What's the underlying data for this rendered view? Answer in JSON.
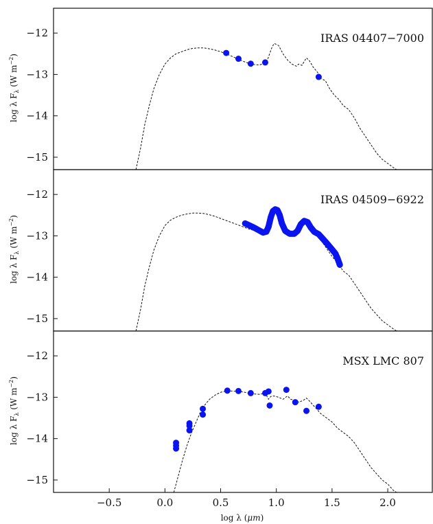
{
  "chart_data": [
    {
      "type": "scatter",
      "label": "IRAS 04407−7000",
      "ylabel_main": "log λ F",
      "ylabel_sub": "λ",
      "ylabel_unit": "(W m",
      "ylabel_exp": "−2",
      "ylabel_close": ")",
      "xlim": [
        -1.0,
        2.4
      ],
      "ylim": [
        -15.3,
        -11.4
      ],
      "yticks": [
        -12,
        -13,
        -14,
        -15
      ],
      "ytick_labels": [
        "−12",
        "−13",
        "−14",
        "−15"
      ],
      "model": [
        [
          -0.26,
          -15.3
        ],
        [
          -0.22,
          -14.8
        ],
        [
          -0.18,
          -14.2
        ],
        [
          -0.14,
          -13.75
        ],
        [
          -0.1,
          -13.35
        ],
        [
          -0.05,
          -13.0
        ],
        [
          0.0,
          -12.75
        ],
        [
          0.05,
          -12.6
        ],
        [
          0.1,
          -12.5
        ],
        [
          0.15,
          -12.45
        ],
        [
          0.2,
          -12.4
        ],
        [
          0.25,
          -12.37
        ],
        [
          0.3,
          -12.36
        ],
        [
          0.35,
          -12.36
        ],
        [
          0.4,
          -12.38
        ],
        [
          0.45,
          -12.41
        ],
        [
          0.5,
          -12.45
        ],
        [
          0.55,
          -12.5
        ],
        [
          0.6,
          -12.56
        ],
        [
          0.65,
          -12.62
        ],
        [
          0.7,
          -12.68
        ],
        [
          0.75,
          -12.73
        ],
        [
          0.8,
          -12.76
        ],
        [
          0.85,
          -12.77
        ],
        [
          0.88,
          -12.74
        ],
        [
          0.92,
          -12.65
        ],
        [
          0.96,
          -12.35
        ],
        [
          0.98,
          -12.25
        ],
        [
          1.02,
          -12.3
        ],
        [
          1.06,
          -12.5
        ],
        [
          1.1,
          -12.65
        ],
        [
          1.14,
          -12.75
        ],
        [
          1.18,
          -12.8
        ],
        [
          1.2,
          -12.75
        ],
        [
          1.23,
          -12.78
        ],
        [
          1.27,
          -12.6
        ],
        [
          1.3,
          -12.68
        ],
        [
          1.33,
          -12.82
        ],
        [
          1.37,
          -12.95
        ],
        [
          1.4,
          -13.1
        ],
        [
          1.44,
          -13.15
        ],
        [
          1.48,
          -13.35
        ],
        [
          1.52,
          -13.5
        ],
        [
          1.56,
          -13.6
        ],
        [
          1.6,
          -13.75
        ],
        [
          1.65,
          -13.85
        ],
        [
          1.7,
          -14.05
        ],
        [
          1.75,
          -14.3
        ],
        [
          1.8,
          -14.5
        ],
        [
          1.85,
          -14.7
        ],
        [
          1.9,
          -14.9
        ],
        [
          1.95,
          -15.05
        ],
        [
          2.0,
          -15.15
        ],
        [
          2.05,
          -15.25
        ],
        [
          2.08,
          -15.3
        ]
      ],
      "points": [
        [
          0.55,
          -12.48
        ],
        [
          0.66,
          -12.62
        ],
        [
          0.77,
          -12.74
        ],
        [
          0.9,
          -12.71
        ],
        [
          1.38,
          -13.06
        ]
      ]
    },
    {
      "type": "scatter",
      "label": "IRAS 04509−6922",
      "ylabel_main": "log λ F",
      "ylabel_sub": "λ",
      "ylabel_unit": "(W m",
      "ylabel_exp": "−2",
      "ylabel_close": ")",
      "xlim": [
        -1.0,
        2.4
      ],
      "ylim": [
        -15.3,
        -11.4
      ],
      "yticks": [
        -12,
        -13,
        -14,
        -15
      ],
      "ytick_labels": [
        "−12",
        "−13",
        "−14",
        "−15"
      ],
      "model": [
        [
          -0.26,
          -15.3
        ],
        [
          -0.22,
          -14.8
        ],
        [
          -0.18,
          -14.2
        ],
        [
          -0.14,
          -13.75
        ],
        [
          -0.1,
          -13.35
        ],
        [
          -0.05,
          -13.0
        ],
        [
          0.0,
          -12.75
        ],
        [
          0.05,
          -12.62
        ],
        [
          0.1,
          -12.55
        ],
        [
          0.15,
          -12.5
        ],
        [
          0.2,
          -12.47
        ],
        [
          0.25,
          -12.45
        ],
        [
          0.3,
          -12.45
        ],
        [
          0.35,
          -12.46
        ],
        [
          0.4,
          -12.49
        ],
        [
          0.45,
          -12.53
        ],
        [
          0.5,
          -12.58
        ],
        [
          0.55,
          -12.63
        ],
        [
          0.6,
          -12.68
        ],
        [
          0.65,
          -12.73
        ],
        [
          0.7,
          -12.78
        ],
        [
          0.75,
          -12.83
        ],
        [
          0.8,
          -12.87
        ],
        [
          0.85,
          -12.9
        ],
        [
          0.9,
          -12.85
        ],
        [
          0.95,
          -12.55
        ],
        [
          0.98,
          -12.4
        ],
        [
          1.02,
          -12.45
        ],
        [
          1.06,
          -12.7
        ],
        [
          1.1,
          -12.9
        ],
        [
          1.15,
          -12.95
        ],
        [
          1.2,
          -12.85
        ],
        [
          1.25,
          -12.7
        ],
        [
          1.3,
          -12.78
        ],
        [
          1.35,
          -12.95
        ],
        [
          1.4,
          -13.1
        ],
        [
          1.45,
          -13.3
        ],
        [
          1.5,
          -13.5
        ],
        [
          1.55,
          -13.65
        ],
        [
          1.6,
          -13.85
        ],
        [
          1.65,
          -13.95
        ],
        [
          1.7,
          -14.15
        ],
        [
          1.75,
          -14.35
        ],
        [
          1.8,
          -14.55
        ],
        [
          1.85,
          -14.75
        ],
        [
          1.9,
          -14.9
        ],
        [
          1.95,
          -15.05
        ],
        [
          2.0,
          -15.15
        ],
        [
          2.05,
          -15.25
        ],
        [
          2.08,
          -15.3
        ]
      ],
      "spectrum": [
        [
          0.72,
          -12.7
        ],
        [
          0.76,
          -12.75
        ],
        [
          0.8,
          -12.8
        ],
        [
          0.84,
          -12.86
        ],
        [
          0.88,
          -12.92
        ],
        [
          0.91,
          -12.9
        ],
        [
          0.93,
          -12.78
        ],
        [
          0.95,
          -12.55
        ],
        [
          0.97,
          -12.4
        ],
        [
          0.99,
          -12.36
        ],
        [
          1.01,
          -12.38
        ],
        [
          1.03,
          -12.5
        ],
        [
          1.05,
          -12.7
        ],
        [
          1.08,
          -12.88
        ],
        [
          1.12,
          -12.95
        ],
        [
          1.16,
          -12.95
        ],
        [
          1.19,
          -12.88
        ],
        [
          1.22,
          -12.72
        ],
        [
          1.25,
          -12.64
        ],
        [
          1.28,
          -12.67
        ],
        [
          1.31,
          -12.8
        ],
        [
          1.34,
          -12.9
        ],
        [
          1.38,
          -12.96
        ],
        [
          1.42,
          -13.08
        ],
        [
          1.46,
          -13.2
        ],
        [
          1.5,
          -13.33
        ],
        [
          1.53,
          -13.43
        ],
        [
          1.55,
          -13.55
        ],
        [
          1.57,
          -13.7
        ]
      ]
    },
    {
      "type": "scatter",
      "label": "MSX LMC 807",
      "ylabel_main": "log λ F",
      "ylabel_sub": "λ",
      "ylabel_unit": "(W m",
      "ylabel_exp": "−2",
      "ylabel_close": ")",
      "xlim": [
        -1.0,
        2.4
      ],
      "ylim": [
        -15.3,
        -11.4
      ],
      "yticks": [
        -12,
        -13,
        -14,
        -15
      ],
      "ytick_labels": [
        "−12",
        "−13",
        "−14",
        "−15"
      ],
      "xticks": [
        -0.5,
        0.0,
        0.5,
        1.0,
        1.5,
        2.0
      ],
      "xtick_labels": [
        "−0.5",
        "0.0",
        "0.5",
        "1.0",
        "1.5",
        "2.0"
      ],
      "xlabel_main": "log λ (",
      "xlabel_unit": "μm",
      "xlabel_close": ")",
      "model": [
        [
          0.08,
          -15.3
        ],
        [
          0.12,
          -14.9
        ],
        [
          0.16,
          -14.5
        ],
        [
          0.2,
          -14.15
        ],
        [
          0.24,
          -13.85
        ],
        [
          0.28,
          -13.6
        ],
        [
          0.32,
          -13.35
        ],
        [
          0.36,
          -13.18
        ],
        [
          0.4,
          -13.05
        ],
        [
          0.45,
          -12.95
        ],
        [
          0.5,
          -12.88
        ],
        [
          0.55,
          -12.85
        ],
        [
          0.6,
          -12.85
        ],
        [
          0.65,
          -12.86
        ],
        [
          0.7,
          -12.87
        ],
        [
          0.75,
          -12.9
        ],
        [
          0.8,
          -12.92
        ],
        [
          0.85,
          -12.93
        ],
        [
          0.9,
          -12.9
        ],
        [
          0.93,
          -13.05
        ],
        [
          0.95,
          -12.98
        ],
        [
          0.98,
          -12.97
        ],
        [
          1.02,
          -13.0
        ],
        [
          1.06,
          -13.05
        ],
        [
          1.1,
          -12.97
        ],
        [
          1.13,
          -13.05
        ],
        [
          1.17,
          -13.08
        ],
        [
          1.2,
          -13.12
        ],
        [
          1.24,
          -13.08
        ],
        [
          1.27,
          -13.02
        ],
        [
          1.3,
          -13.1
        ],
        [
          1.35,
          -13.25
        ],
        [
          1.4,
          -13.4
        ],
        [
          1.45,
          -13.5
        ],
        [
          1.5,
          -13.6
        ],
        [
          1.55,
          -13.75
        ],
        [
          1.6,
          -13.85
        ],
        [
          1.65,
          -13.95
        ],
        [
          1.7,
          -14.1
        ],
        [
          1.75,
          -14.3
        ],
        [
          1.8,
          -14.5
        ],
        [
          1.85,
          -14.7
        ],
        [
          1.9,
          -14.85
        ],
        [
          1.95,
          -15.0
        ],
        [
          2.0,
          -15.1
        ],
        [
          2.05,
          -15.25
        ],
        [
          2.08,
          -15.3
        ]
      ],
      "points": [
        [
          0.1,
          -14.1
        ],
        [
          0.1,
          -14.17
        ],
        [
          0.1,
          -14.24
        ],
        [
          0.22,
          -13.63
        ],
        [
          0.22,
          -13.69
        ],
        [
          0.22,
          -13.8
        ],
        [
          0.34,
          -13.28
        ],
        [
          0.34,
          -13.42
        ],
        [
          0.56,
          -12.84
        ],
        [
          0.66,
          -12.85
        ],
        [
          0.77,
          -12.9
        ],
        [
          0.9,
          -12.9
        ],
        [
          0.93,
          -12.86
        ],
        [
          0.94,
          -13.2
        ],
        [
          1.09,
          -12.82
        ],
        [
          1.17,
          -13.12
        ],
        [
          1.27,
          -13.33
        ],
        [
          1.38,
          -13.23
        ]
      ]
    }
  ]
}
